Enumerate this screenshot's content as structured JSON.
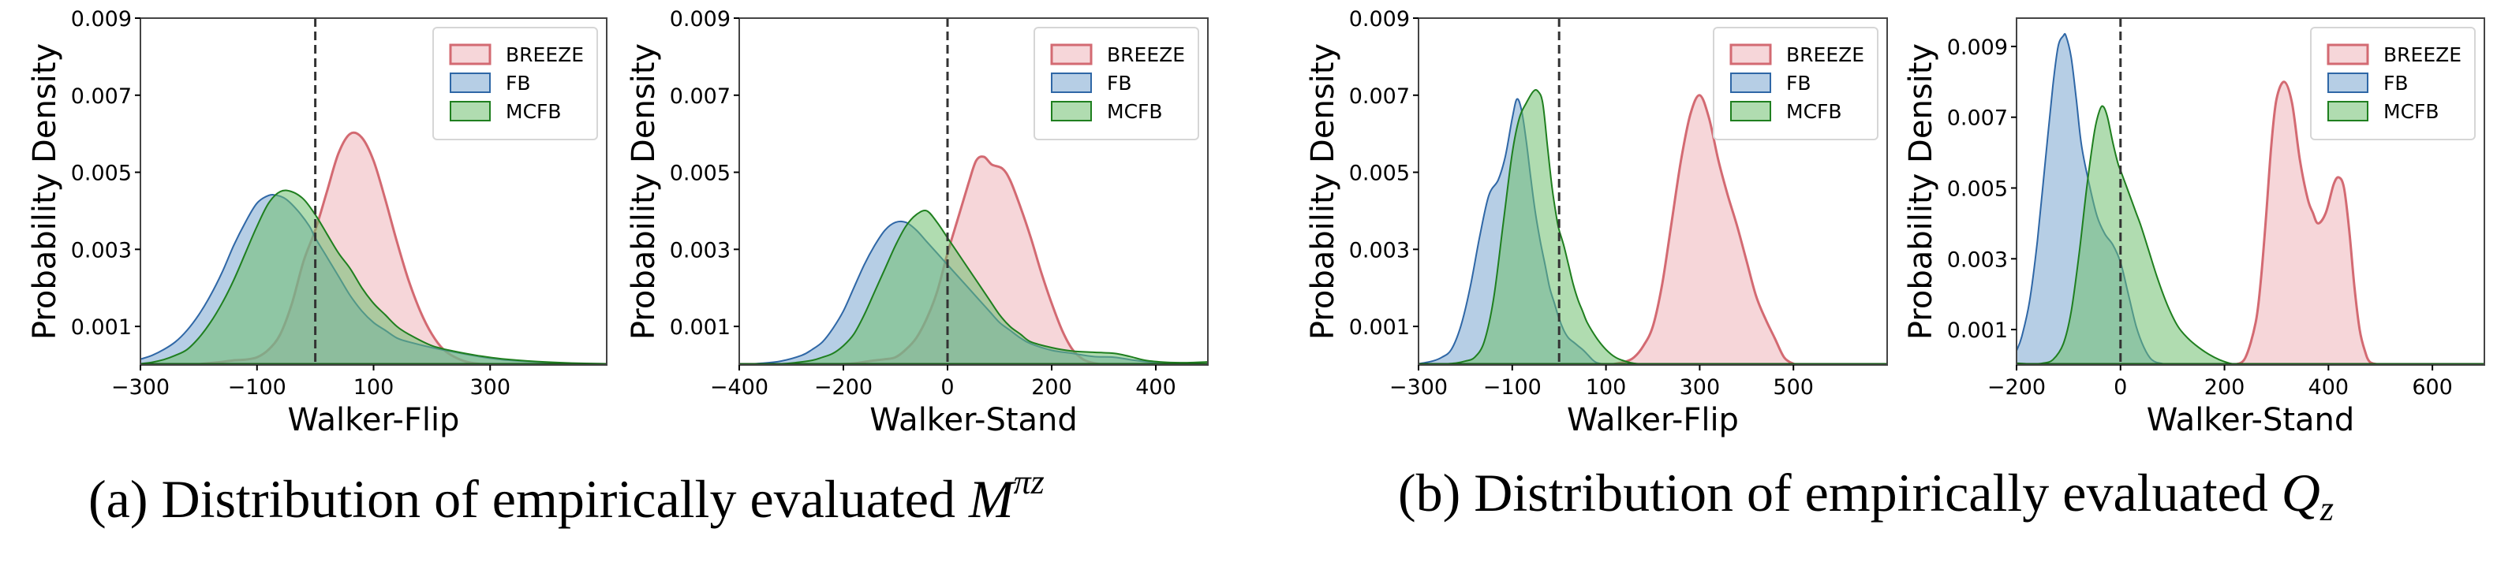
{
  "captions": {
    "a": {
      "prefix": "(a) Distribution of empirically evaluated ",
      "math": "M",
      "sup": "πz",
      "sub": ""
    },
    "b": {
      "prefix": "(b) Distribution of empirically evaluated ",
      "math": "Q",
      "sup": "",
      "sub": "z"
    }
  },
  "colors": {
    "BREEZE": {
      "edge": "#d36a72",
      "fill": "#eeb5b9"
    },
    "FB": {
      "edge": "#2f67a6",
      "fill": "#7aa6cf"
    },
    "MCFB": {
      "edge": "#1f7f1f",
      "fill": "#6fbf6f"
    },
    "reference_line": "#333333"
  },
  "chart_data": [
    {
      "type": "area",
      "group": "a",
      "title": "",
      "xlabel": "Walker-Flip",
      "ylabel": "Probability Density",
      "xlim": [
        -300,
        500
      ],
      "ylim": [
        0,
        0.009
      ],
      "xticks": [
        -300,
        -100,
        100,
        300
      ],
      "xtick_labels": [
        "−300",
        "−100",
        "100",
        "300"
      ],
      "yticks": [
        0.001,
        0.003,
        0.005,
        0.007,
        0.009
      ],
      "ytick_labels": [
        "0.001",
        "0.003",
        "0.005",
        "0.007",
        "0.009"
      ],
      "reference_x": 0,
      "legend": {
        "position": "top-right",
        "entries": [
          "BREEZE",
          "FB",
          "MCFB"
        ]
      },
      "series": [
        {
          "name": "BREEZE",
          "x": [
            -200,
            -160,
            -140,
            -120,
            -100,
            -80,
            -60,
            -40,
            -20,
            0,
            20,
            40,
            60,
            80,
            100,
            120,
            140,
            160,
            180,
            200,
            220,
            240,
            260,
            280,
            300
          ],
          "y": [
            2e-05,
            8e-05,
            0.00012,
            0.00014,
            0.0002,
            0.0004,
            0.0008,
            0.0016,
            0.0027,
            0.0035,
            0.0045,
            0.0055,
            0.006,
            0.0059,
            0.0053,
            0.0043,
            0.0032,
            0.0022,
            0.0014,
            0.0008,
            0.0004,
            0.0002,
            8e-05,
            3e-05,
            1e-05
          ]
        },
        {
          "name": "FB",
          "x": [
            -300,
            -280,
            -260,
            -240,
            -220,
            -200,
            -180,
            -160,
            -140,
            -120,
            -100,
            -80,
            -66,
            -50,
            -30,
            -10,
            0,
            20,
            40,
            60,
            80,
            100,
            120,
            140,
            160,
            200,
            240,
            280,
            320,
            380,
            440,
            500
          ],
          "y": [
            0.00015,
            0.00025,
            0.0004,
            0.0006,
            0.0009,
            0.0013,
            0.0018,
            0.0024,
            0.0031,
            0.0037,
            0.0042,
            0.0044,
            0.0044,
            0.0043,
            0.004,
            0.0036,
            0.0033,
            0.0028,
            0.0023,
            0.0018,
            0.0014,
            0.0011,
            0.0009,
            0.0007,
            0.0006,
            0.00045,
            0.00033,
            0.00022,
            0.00014,
            8e-05,
            4e-05,
            2e-05
          ]
        },
        {
          "name": "MCFB",
          "x": [
            -300,
            -280,
            -260,
            -240,
            -220,
            -200,
            -180,
            -160,
            -140,
            -120,
            -100,
            -80,
            -60,
            -41,
            -20,
            0,
            20,
            40,
            60,
            80,
            100,
            120,
            140,
            160,
            200,
            240,
            280,
            320,
            380,
            440,
            500
          ],
          "y": [
            3e-05,
            7e-05,
            0.00014,
            0.00025,
            0.0004,
            0.0007,
            0.0011,
            0.0016,
            0.0022,
            0.0029,
            0.0036,
            0.0042,
            0.0045,
            0.0045,
            0.0043,
            0.0039,
            0.0034,
            0.0029,
            0.0025,
            0.002,
            0.0016,
            0.0013,
            0.001,
            0.0008,
            0.0005,
            0.00035,
            0.00024,
            0.00016,
            9e-05,
            5e-05,
            3e-05
          ]
        }
      ]
    },
    {
      "type": "area",
      "group": "a",
      "title": "",
      "xlabel": "Walker-Stand",
      "ylabel": "Probability Density",
      "xlim": [
        -400,
        500
      ],
      "ylim": [
        0,
        0.009
      ],
      "xticks": [
        -400,
        -200,
        0,
        200,
        400
      ],
      "xtick_labels": [
        "−400",
        "−200",
        "0",
        "200",
        "400"
      ],
      "yticks": [
        0.001,
        0.003,
        0.005,
        0.007,
        0.009
      ],
      "ytick_labels": [
        "0.001",
        "0.003",
        "0.005",
        "0.007",
        "0.009"
      ],
      "reference_x": 0,
      "legend": {
        "position": "top-right",
        "entries": [
          "BREEZE",
          "FB",
          "MCFB"
        ]
      },
      "series": [
        {
          "name": "BREEZE",
          "x": [
            -220,
            -180,
            -150,
            -120,
            -100,
            -80,
            -60,
            -40,
            -20,
            0,
            20,
            40,
            55,
            70,
            85,
            105,
            120,
            140,
            160,
            180,
            200,
            220,
            240,
            260,
            280,
            300
          ],
          "y": [
            1e-05,
            4e-05,
            0.0001,
            0.00015,
            0.0002,
            0.0004,
            0.0007,
            0.0012,
            0.0019,
            0.0029,
            0.0038,
            0.0047,
            0.0053,
            0.0054,
            0.0052,
            0.0051,
            0.0048,
            0.0041,
            0.0033,
            0.0024,
            0.0016,
            0.0009,
            0.0004,
            0.00015,
            5e-05,
            1e-05
          ]
        },
        {
          "name": "FB",
          "x": [
            -400,
            -360,
            -320,
            -280,
            -260,
            -240,
            -220,
            -200,
            -180,
            -160,
            -140,
            -120,
            -100,
            -80,
            -60,
            -40,
            -20,
            0,
            20,
            40,
            60,
            80,
            100,
            120,
            140,
            160,
            200,
            240,
            280,
            320,
            360,
            400,
            440,
            500
          ],
          "y": [
            1e-05,
            4e-05,
            0.0001,
            0.00025,
            0.0004,
            0.0006,
            0.00095,
            0.0014,
            0.002,
            0.0026,
            0.0031,
            0.0035,
            0.0037,
            0.0037,
            0.0035,
            0.0032,
            0.0029,
            0.0026,
            0.0023,
            0.002,
            0.0017,
            0.0014,
            0.0011,
            0.0009,
            0.0007,
            0.00055,
            0.00038,
            0.0003,
            0.00022,
            0.0002,
            0.00012,
            6e-05,
            3e-05,
            1e-05
          ]
        },
        {
          "name": "MCFB",
          "x": [
            -400,
            -340,
            -300,
            -260,
            -240,
            -220,
            -200,
            -180,
            -160,
            -140,
            -120,
            -100,
            -80,
            -60,
            -40,
            -20,
            0,
            20,
            40,
            60,
            80,
            100,
            120,
            140,
            160,
            200,
            240,
            280,
            320,
            350,
            380,
            420,
            460,
            500
          ],
          "y": [
            1e-05,
            2e-05,
            5e-05,
            0.00012,
            0.0002,
            0.0003,
            0.0005,
            0.0008,
            0.0013,
            0.0019,
            0.0025,
            0.0031,
            0.0036,
            0.0039,
            0.004,
            0.0037,
            0.0033,
            0.0029,
            0.0025,
            0.0021,
            0.0017,
            0.0013,
            0.001,
            0.0008,
            0.0006,
            0.00045,
            0.00036,
            0.00033,
            0.0003,
            0.00022,
            0.00012,
            7e-05,
            6e-05,
            8e-05
          ]
        }
      ]
    },
    {
      "type": "area",
      "group": "b",
      "title": "",
      "xlabel": "Walker-Flip",
      "ylabel": "Probability Density",
      "xlim": [
        -300,
        700
      ],
      "ylim": [
        0,
        0.009
      ],
      "xticks": [
        -300,
        -100,
        100,
        300,
        500
      ],
      "xtick_labels": [
        "−300",
        "−100",
        "100",
        "300",
        "500"
      ],
      "yticks": [
        0.001,
        0.003,
        0.005,
        0.007,
        0.009
      ],
      "ytick_labels": [
        "0.001",
        "0.003",
        "0.005",
        "0.007",
        "0.009"
      ],
      "reference_x": 0,
      "legend": {
        "position": "top-right",
        "entries": [
          "BREEZE",
          "FB",
          "MCFB"
        ]
      },
      "series": [
        {
          "name": "BREEZE",
          "x": [
            110,
            140,
            160,
            180,
            200,
            220,
            240,
            260,
            280,
            300,
            320,
            340,
            360,
            380,
            400,
            420,
            440,
            460,
            480,
            500,
            510
          ],
          "y": [
            1e-05,
            8e-05,
            0.0002,
            0.0005,
            0.001,
            0.0021,
            0.0037,
            0.0053,
            0.0065,
            0.007,
            0.0064,
            0.0053,
            0.0044,
            0.0036,
            0.0027,
            0.0018,
            0.0012,
            0.0007,
            0.0002,
            3e-05,
            1e-05
          ]
        },
        {
          "name": "FB",
          "x": [
            -300,
            -270,
            -250,
            -230,
            -210,
            -190,
            -170,
            -150,
            -130,
            -115,
            -100,
            -90,
            -80,
            -70,
            -60,
            -50,
            -40,
            -30,
            -20,
            -10,
            0,
            10,
            20,
            30,
            40,
            50,
            60,
            70,
            80,
            100
          ],
          "y": [
            3e-05,
            0.0001,
            0.0002,
            0.0004,
            0.001,
            0.002,
            0.0033,
            0.0044,
            0.0048,
            0.0054,
            0.0064,
            0.0069,
            0.0066,
            0.0058,
            0.0048,
            0.0039,
            0.0032,
            0.0026,
            0.002,
            0.0016,
            0.0012,
            0.0009,
            0.0007,
            0.0006,
            0.0005,
            0.0004,
            0.00028,
            0.00015,
            6e-05,
            1e-05
          ]
        },
        {
          "name": "MCFB",
          "x": [
            -260,
            -220,
            -200,
            -180,
            -160,
            -140,
            -120,
            -100,
            -85,
            -70,
            -55,
            -45,
            -35,
            -25,
            -15,
            -5,
            0,
            10,
            20,
            30,
            40,
            50,
            60,
            80,
            100,
            120,
            140,
            160,
            200
          ],
          "y": [
            1e-05,
            5e-05,
            0.0001,
            0.0002,
            0.0006,
            0.0017,
            0.0036,
            0.0055,
            0.0064,
            0.0068,
            0.0071,
            0.0071,
            0.0068,
            0.0057,
            0.0046,
            0.0038,
            0.0035,
            0.0031,
            0.0026,
            0.0021,
            0.0017,
            0.0014,
            0.0011,
            0.0007,
            0.0004,
            0.0002,
            0.0001,
            4e-05,
            1e-05
          ]
        }
      ]
    },
    {
      "type": "area",
      "group": "b",
      "title": "",
      "xlabel": "Walker-Stand",
      "ylabel": "Probability Density",
      "xlim": [
        -200,
        700
      ],
      "ylim": [
        0,
        0.0098
      ],
      "xticks": [
        -200,
        0,
        200,
        400,
        600
      ],
      "xtick_labels": [
        "−200",
        "0",
        "200",
        "400",
        "600"
      ],
      "yticks": [
        0.001,
        0.003,
        0.005,
        0.007,
        0.009
      ],
      "ytick_labels": [
        "0.001",
        "0.003",
        "0.005",
        "0.007",
        "0.009"
      ],
      "reference_x": 0,
      "legend": {
        "position": "top-right",
        "entries": [
          "BREEZE",
          "FB",
          "MCFB"
        ]
      },
      "series": [
        {
          "name": "BREEZE",
          "x": [
            220,
            240,
            260,
            270,
            280,
            290,
            300,
            315,
            330,
            345,
            360,
            370,
            380,
            395,
            410,
            420,
            430,
            440,
            450,
            460,
            470,
            480,
            500
          ],
          "y": [
            1e-05,
            0.0002,
            0.0012,
            0.0024,
            0.0042,
            0.0062,
            0.0075,
            0.008,
            0.0074,
            0.0058,
            0.0047,
            0.0043,
            0.004,
            0.0043,
            0.0051,
            0.0053,
            0.005,
            0.0038,
            0.0022,
            0.001,
            0.0004,
            8e-05,
            1e-05
          ]
        },
        {
          "name": "FB",
          "x": [
            -200,
            -190,
            -175,
            -160,
            -145,
            -130,
            -120,
            -110,
            -105,
            -95,
            -85,
            -75,
            -60,
            -45,
            -30,
            -15,
            0,
            15,
            30,
            45,
            60,
            80,
            110
          ],
          "y": [
            0.0004,
            0.0008,
            0.0018,
            0.0035,
            0.0057,
            0.0079,
            0.009,
            0.0093,
            0.0093,
            0.0087,
            0.0075,
            0.0062,
            0.0051,
            0.0042,
            0.0037,
            0.0034,
            0.0029,
            0.002,
            0.0011,
            0.0005,
            0.00015,
            4e-05,
            1e-05
          ]
        },
        {
          "name": "MCFB",
          "x": [
            -200,
            -170,
            -150,
            -130,
            -110,
            -95,
            -80,
            -65,
            -50,
            -40,
            -33,
            -25,
            -15,
            -5,
            0,
            10,
            20,
            30,
            40,
            55,
            70,
            90,
            110,
            130,
            150,
            170,
            190,
            210,
            230
          ],
          "y": [
            5e-05,
            3e-05,
            5e-05,
            0.00015,
            0.0006,
            0.0015,
            0.0031,
            0.005,
            0.0066,
            0.0072,
            0.0073,
            0.007,
            0.0063,
            0.0057,
            0.0055,
            0.0051,
            0.0047,
            0.0043,
            0.0039,
            0.0032,
            0.0025,
            0.0017,
            0.0011,
            0.00075,
            0.0005,
            0.0003,
            0.00015,
            5e-05,
            1e-05
          ]
        }
      ]
    }
  ]
}
